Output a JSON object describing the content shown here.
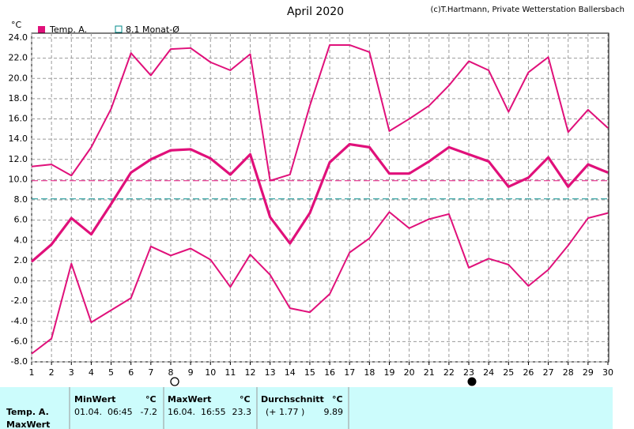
{
  "chart_data": {
    "type": "line",
    "title": "April 2020",
    "credit": "(c)T.Hartmann, Private Wetterstation Ballersbach",
    "y_label": "°C",
    "x": [
      1,
      2,
      3,
      4,
      5,
      6,
      7,
      8,
      9,
      10,
      11,
      12,
      13,
      14,
      15,
      16,
      17,
      18,
      19,
      20,
      21,
      22,
      23,
      24,
      25,
      26,
      27,
      28,
      29,
      30
    ],
    "xlim": [
      1,
      30
    ],
    "xticks": [
      1,
      2,
      3,
      4,
      5,
      6,
      7,
      8,
      9,
      10,
      11,
      12,
      13,
      14,
      15,
      16,
      17,
      18,
      19,
      20,
      21,
      22,
      23,
      24,
      25,
      26,
      27,
      28,
      29,
      30
    ],
    "ylim": [
      -8,
      24
    ],
    "yticks": [
      {
        "value": -8,
        "label": "-8.0"
      },
      {
        "value": -6,
        "label": "-6.0"
      },
      {
        "value": -4,
        "label": "-4.0"
      },
      {
        "value": -2,
        "label": "-2.0"
      },
      {
        "value": 0,
        "label": "0.0"
      },
      {
        "value": 2,
        "label": "2.0"
      },
      {
        "value": 4,
        "label": "4.0"
      },
      {
        "value": 6,
        "label": "6.0"
      },
      {
        "value": 8,
        "label": "8.0"
      },
      {
        "value": 10,
        "label": "10.0"
      },
      {
        "value": 12,
        "label": "12.0"
      },
      {
        "value": 14,
        "label": "14.0"
      },
      {
        "value": 16,
        "label": "16.0"
      },
      {
        "value": 18,
        "label": "18.0"
      },
      {
        "value": 20,
        "label": "20.0"
      },
      {
        "value": 22,
        "label": "22.0"
      },
      {
        "value": 24,
        "label": "24.0"
      }
    ],
    "grid": true,
    "series": [
      {
        "name": "Temp. A.",
        "color": "#e0107a",
        "values": [
          1.9,
          3.6,
          6.2,
          4.6,
          7.6,
          10.7,
          12.0,
          12.9,
          13.0,
          12.1,
          10.5,
          12.5,
          6.3,
          3.7,
          6.7,
          11.7,
          13.5,
          13.2,
          10.6,
          10.6,
          11.8,
          13.2,
          12.5,
          11.8,
          9.3,
          10.2,
          12.2,
          9.3,
          11.5,
          10.7
        ],
        "max_values": [
          11.3,
          11.5,
          10.4,
          13.2,
          17.0,
          22.5,
          20.3,
          22.9,
          23.0,
          21.6,
          20.8,
          22.4,
          9.9,
          10.5,
          17.3,
          23.3,
          23.3,
          22.6,
          14.8,
          16.0,
          17.3,
          19.3,
          21.7,
          20.8,
          16.7,
          20.6,
          22.1,
          14.7,
          16.9,
          15.1
        ],
        "min_values": [
          -7.2,
          -5.7,
          1.7,
          -4.1,
          -2.9,
          -1.7,
          3.4,
          2.5,
          3.2,
          2.1,
          -0.6,
          2.6,
          0.6,
          -2.7,
          -3.1,
          -1.3,
          2.8,
          4.2,
          6.8,
          5.2,
          6.1,
          6.6,
          1.3,
          2.2,
          1.6,
          -0.5,
          1.1,
          3.5,
          6.2,
          6.7
        ]
      }
    ],
    "reference_line": {
      "label": "8.1 Monat-Ø",
      "value": 8.1,
      "color": "#008b8b"
    },
    "stats": {
      "row_labels": [
        "Temp. A.",
        "MaxWert"
      ],
      "headers": [
        "MinWert",
        "°C",
        "MaxWert",
        "°C",
        "Durchschnitt",
        "°C"
      ],
      "min_time": "01.04.  06:45",
      "min_value": -7.2,
      "max_time": "16.04.  16:55",
      "max_value": 23.3,
      "mean_diff": "(+ 1.77 )",
      "mean_value": 9.89
    }
  }
}
